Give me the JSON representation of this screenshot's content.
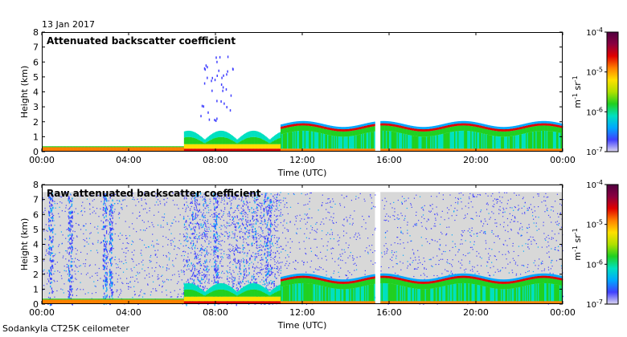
{
  "date_label": "13 Jan 2017",
  "footer_label": "Sodankyla CT25K ceilometer",
  "colors": {
    "missing_bg": "#d8d8d8",
    "colormap": [
      "#ddd6ef",
      "#4040ff",
      "#00a8ff",
      "#00e0c0",
      "#20d020",
      "#b0e000",
      "#ffe000",
      "#ff8000",
      "#e00000",
      "#8a0040",
      "#500040"
    ]
  },
  "chart_data": [
    {
      "type": "heatmap",
      "title": "Attenuated backscatter coefficient",
      "xlabel": "Time (UTC)",
      "ylabel": "Height (km)",
      "xlim": [
        0,
        24
      ],
      "ylim": [
        0,
        8
      ],
      "x_ticks": [
        "00:00",
        "04:00",
        "08:00",
        "12:00",
        "16:00",
        "20:00",
        "00:00"
      ],
      "y_ticks": [
        "0",
        "1",
        "2",
        "3",
        "4",
        "5",
        "6",
        "7",
        "8"
      ],
      "data_gap_hours": [
        15.35,
        15.6
      ],
      "missing_background": false,
      "colorbar": {
        "label": "m-1 sr-1",
        "min_label": "10-7",
        "max_label": "10-4",
        "labels": [
          "10-7",
          "10-6",
          "10-5",
          "10-4"
        ],
        "scale": "log"
      },
      "features": [
        {
          "name": "boundary layer",
          "t": [
            0,
            6.5
          ],
          "top_km": 0.35
        },
        {
          "name": "low cloud/aerosol",
          "t": [
            6.5,
            11
          ],
          "top_km": 1.4
        },
        {
          "name": "cloud layer",
          "t": [
            11,
            15.35
          ],
          "top_km": 2.0
        },
        {
          "name": "cloud layer",
          "t": [
            15.6,
            21.5
          ],
          "top_km": 2.0
        },
        {
          "name": "cloud layer",
          "t": [
            21.5,
            24
          ],
          "top_km": 1.8
        }
      ]
    },
    {
      "type": "heatmap",
      "title": "Raw attenuated backscatter coefficient",
      "xlabel": "Time (UTC)",
      "ylabel": "Height (km)",
      "xlim": [
        0,
        24
      ],
      "ylim": [
        0,
        8
      ],
      "x_ticks": [
        "00:00",
        "04:00",
        "08:00",
        "12:00",
        "16:00",
        "20:00",
        "00:00"
      ],
      "y_ticks": [
        "0",
        "1",
        "2",
        "3",
        "4",
        "5",
        "6",
        "7",
        "8"
      ],
      "data_gap_hours": [
        15.35,
        15.6
      ],
      "missing_background": true,
      "colorbar": {
        "label": "m-1 sr-1",
        "min_label": "10-7",
        "max_label": "10-4",
        "labels": [
          "10-7",
          "10-6",
          "10-5",
          "10-4"
        ],
        "scale": "log"
      },
      "features": [
        {
          "name": "noise",
          "t": [
            0,
            24
          ],
          "top_km": 7.5
        },
        {
          "name": "boundary layer",
          "t": [
            0,
            6.5
          ],
          "top_km": 0.35
        },
        {
          "name": "low cloud/aerosol",
          "t": [
            6.5,
            11
          ],
          "top_km": 1.4
        },
        {
          "name": "cloud layer",
          "t": [
            11,
            15.35
          ],
          "top_km": 2.0
        },
        {
          "name": "cloud layer",
          "t": [
            15.6,
            24
          ],
          "top_km": 2.0
        }
      ]
    }
  ]
}
